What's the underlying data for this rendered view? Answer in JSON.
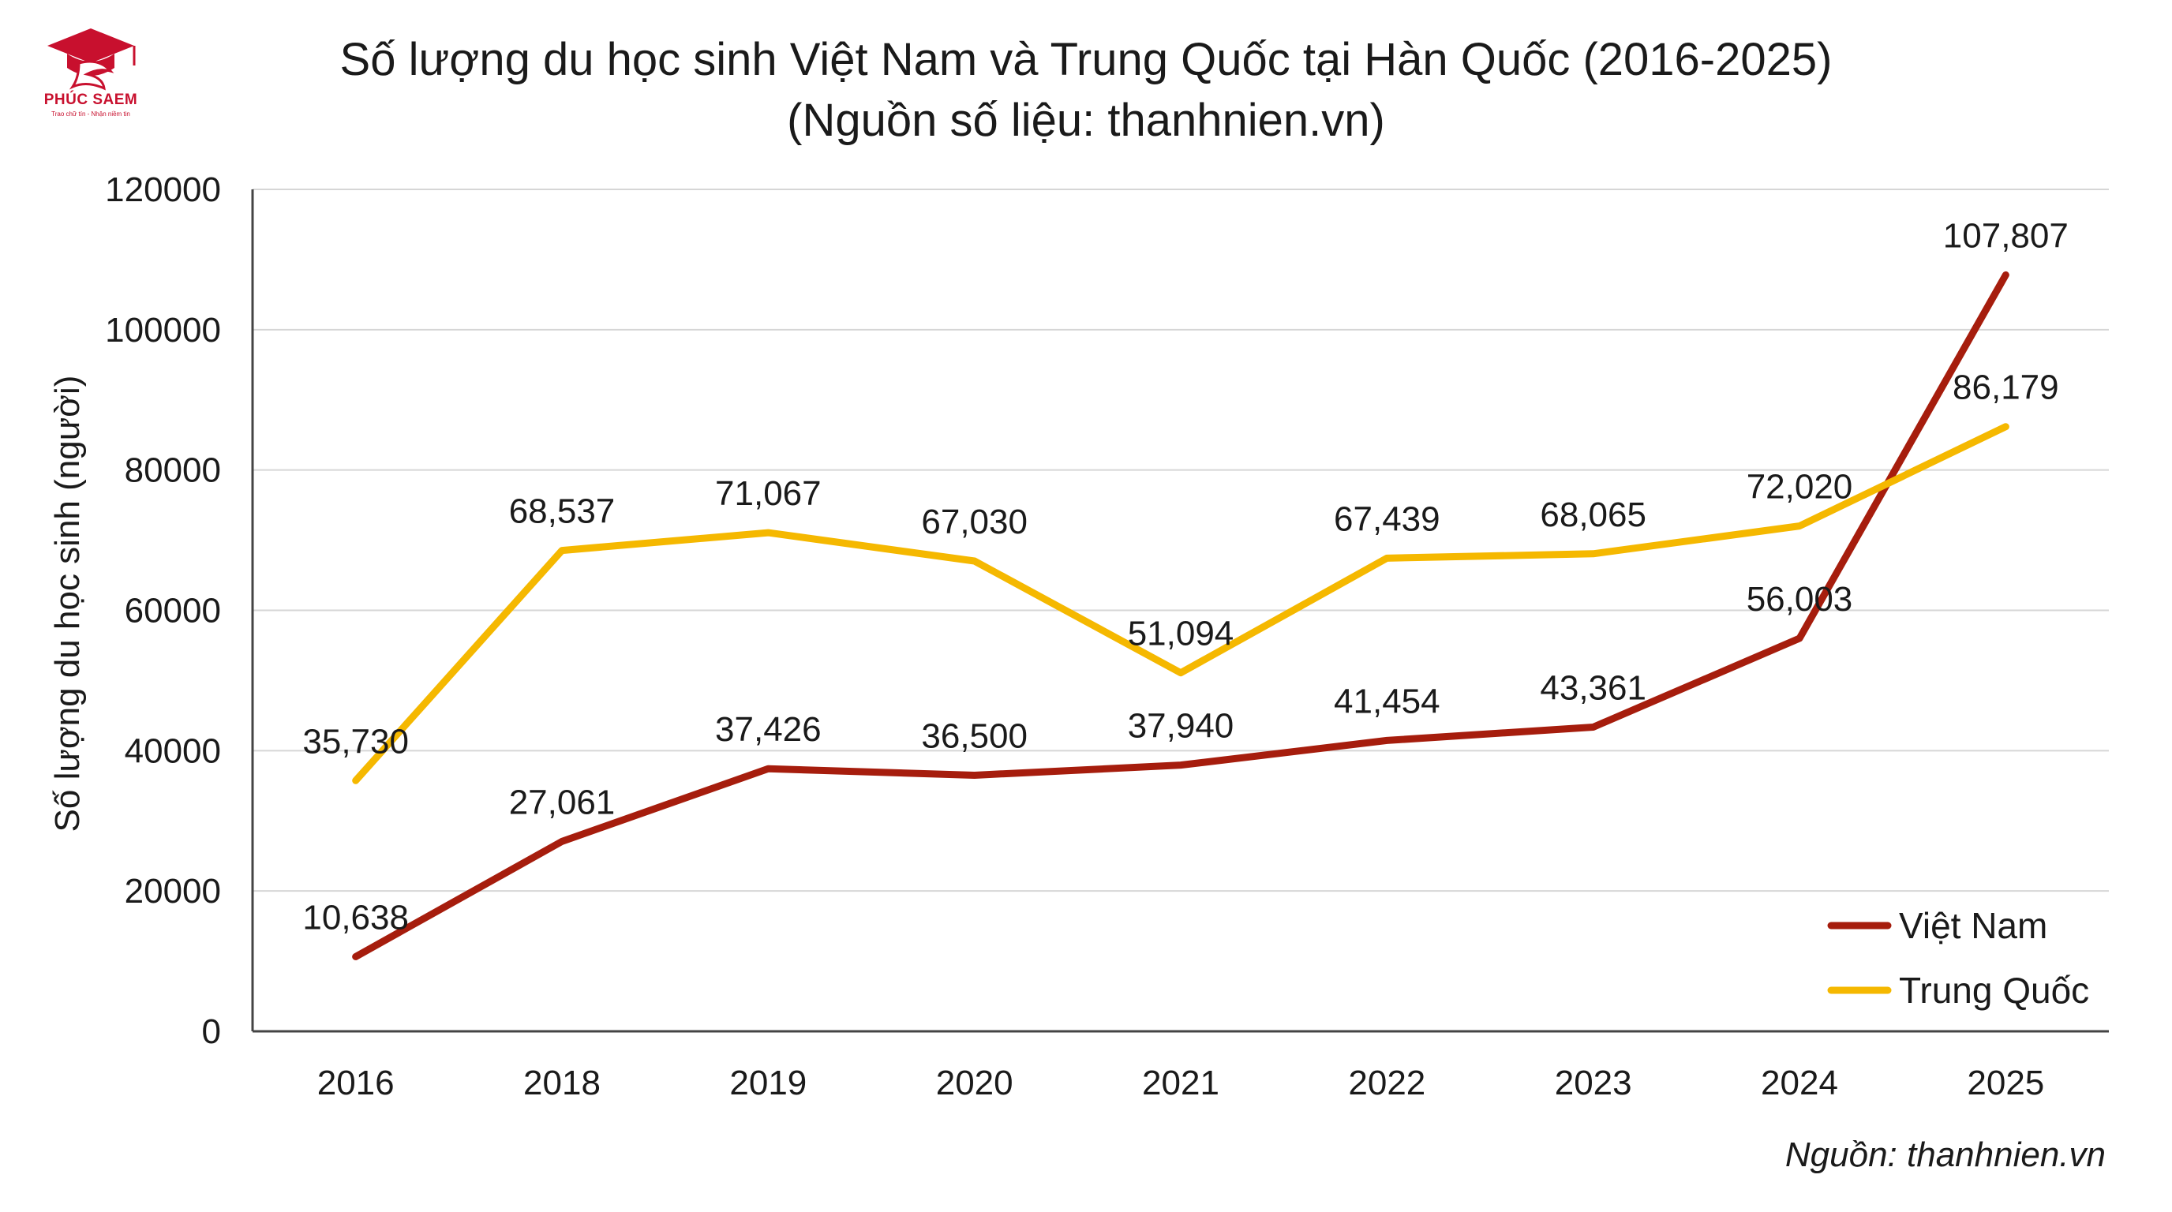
{
  "logo": {
    "name": "PHÚC SAEM",
    "tagline": "Trao chữ tín - Nhận niềm tin"
  },
  "footer": {
    "source": "Nguồn: thanhnien.vn"
  },
  "colors": {
    "vietnam": "#a61d0d",
    "china": "#f5b800",
    "grid": "#d6d6d6",
    "axis": "#444444",
    "logo": "#c8102e"
  },
  "chart_data": {
    "type": "line",
    "title": "Số lượng du học sinh Việt Nam và Trung Quốc tại Hàn Quốc (2016-2025)",
    "subtitle": "(Nguồn số liệu: thanhnien.vn)",
    "xlabel": "",
    "ylabel": "Số lượng du học sinh (người)",
    "categories": [
      "2016",
      "2018",
      "2019",
      "2020",
      "2021",
      "2022",
      "2023",
      "2024",
      "2025"
    ],
    "ylim": [
      0,
      120000
    ],
    "yticks": [
      0,
      20000,
      40000,
      60000,
      80000,
      100000,
      120000
    ],
    "grid": "horizontal",
    "legend_position": "bottom-right",
    "series": [
      {
        "name": "Việt Nam",
        "color": "#a61d0d",
        "values": [
          10638,
          27061,
          37426,
          36500,
          37940,
          41454,
          43361,
          56003,
          107807
        ],
        "labels": [
          "10,638",
          "27,061",
          "37,426",
          "36,500",
          "37,940",
          "41,454",
          "43,361",
          "56,003",
          "107,807"
        ]
      },
      {
        "name": "Trung Quốc",
        "color": "#f5b800",
        "values": [
          35730,
          68537,
          71067,
          67030,
          51094,
          67439,
          68065,
          72020,
          86179
        ],
        "labels": [
          "35,730",
          "68,537",
          "71,067",
          "67,030",
          "51,094",
          "67,439",
          "68,065",
          "72,020",
          "86,179"
        ]
      }
    ]
  }
}
